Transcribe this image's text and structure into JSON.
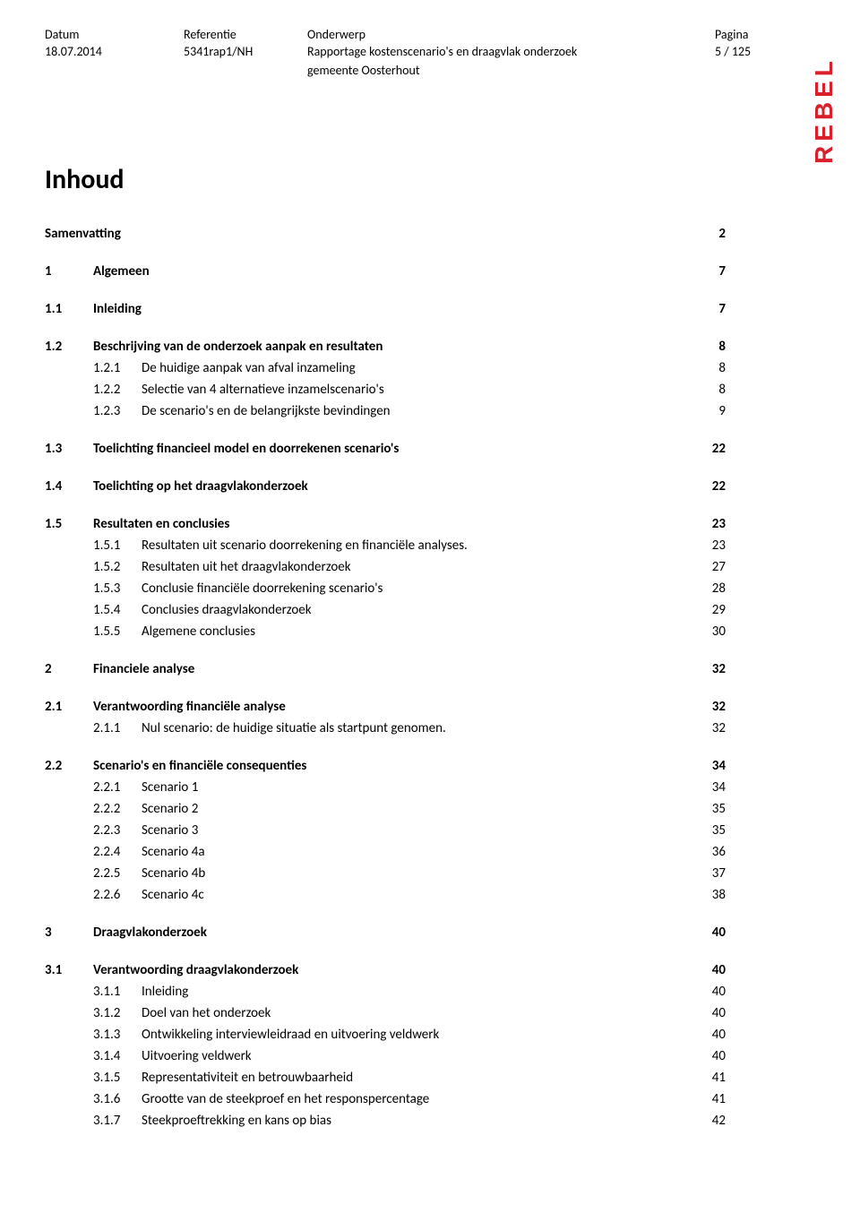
{
  "header": {
    "labels": {
      "datum": "Datum",
      "referentie": "Referentie",
      "onderwerp": "Onderwerp",
      "pagina": "Pagina"
    },
    "values": {
      "datum": "18.07.2014",
      "referentie": "5341rap1/NH",
      "onderwerp_line1": "Rapportage kostenscenario's en draagvlak onderzoek",
      "onderwerp_line2": "gemeente Oosterhout",
      "pagina": "5 / 125"
    }
  },
  "logo": {
    "text": "REBEL",
    "color": "#d91f2a"
  },
  "title": "Inhoud",
  "toc": [
    {
      "level": 0,
      "num": "",
      "title": "Samenvatting",
      "page": "2",
      "bold": true,
      "gap": true
    },
    {
      "level": 0,
      "num": "1",
      "title": "Algemeen",
      "page": "7",
      "bold": true,
      "gap": true
    },
    {
      "level": 0,
      "num": "1.1",
      "title": "Inleiding",
      "page": "7",
      "bold": true,
      "gap": true
    },
    {
      "level": 0,
      "num": "1.2",
      "title": "Beschrijving van de onderzoek aanpak en resultaten",
      "page": "8",
      "bold": true
    },
    {
      "level": 1,
      "num": "1.2.1",
      "title": "De huidige aanpak van afval inzameling",
      "page": "8"
    },
    {
      "level": 1,
      "num": "1.2.2",
      "title": "Selectie van 4 alternatieve inzamelscenario's",
      "page": "8"
    },
    {
      "level": 1,
      "num": "1.2.3",
      "title": "De scenario's en de belangrijkste bevindingen",
      "page": "9",
      "gap": true
    },
    {
      "level": 0,
      "num": "1.3",
      "title": "Toelichting financieel model en doorrekenen scenario's",
      "page": "22",
      "bold": true,
      "gap": true
    },
    {
      "level": 0,
      "num": "1.4",
      "title": "Toelichting op het draagvlakonderzoek",
      "page": "22",
      "bold": true,
      "gap": true
    },
    {
      "level": 0,
      "num": "1.5",
      "title": "Resultaten en conclusies",
      "page": "23",
      "bold": true
    },
    {
      "level": 1,
      "num": "1.5.1",
      "title": "Resultaten uit scenario doorrekening en financiële analyses.",
      "page": "23"
    },
    {
      "level": 1,
      "num": "1.5.2",
      "title": "Resultaten uit het draagvlakonderzoek",
      "page": "27"
    },
    {
      "level": 1,
      "num": "1.5.3",
      "title": "Conclusie financiële doorrekening scenario's",
      "page": "28"
    },
    {
      "level": 1,
      "num": "1.5.4",
      "title": "Conclusies draagvlakonderzoek",
      "page": "29"
    },
    {
      "level": 1,
      "num": "1.5.5",
      "title": "Algemene conclusies",
      "page": "30",
      "gap": true
    },
    {
      "level": 0,
      "num": "2",
      "title": "Financiele analyse",
      "page": "32",
      "bold": true,
      "gap": true
    },
    {
      "level": 0,
      "num": "2.1",
      "title": "Verantwoording financiële analyse",
      "page": "32",
      "bold": true
    },
    {
      "level": 1,
      "num": "2.1.1",
      "title": "Nul scenario: de huidige situatie als startpunt genomen.",
      "page": "32",
      "gap": true
    },
    {
      "level": 0,
      "num": "2.2",
      "title": "Scenario's en financiële consequenties",
      "page": "34",
      "bold": true
    },
    {
      "level": 1,
      "num": "2.2.1",
      "title": "Scenario 1",
      "page": "34"
    },
    {
      "level": 1,
      "num": "2.2.2",
      "title": "Scenario 2",
      "page": "35"
    },
    {
      "level": 1,
      "num": "2.2.3",
      "title": "Scenario 3",
      "page": "35"
    },
    {
      "level": 1,
      "num": "2.2.4",
      "title": "Scenario 4a",
      "page": "36"
    },
    {
      "level": 1,
      "num": "2.2.5",
      "title": "Scenario 4b",
      "page": "37"
    },
    {
      "level": 1,
      "num": "2.2.6",
      "title": "Scenario 4c",
      "page": "38",
      "gap": true
    },
    {
      "level": 0,
      "num": "3",
      "title": "Draagvlakonderzoek",
      "page": "40",
      "bold": true,
      "gap": true
    },
    {
      "level": 0,
      "num": "3.1",
      "title": "Verantwoording draagvlakonderzoek",
      "page": "40",
      "bold": true
    },
    {
      "level": 1,
      "num": "3.1.1",
      "title": "Inleiding",
      "page": "40"
    },
    {
      "level": 1,
      "num": "3.1.2",
      "title": "Doel van het onderzoek",
      "page": "40"
    },
    {
      "level": 1,
      "num": "3.1.3",
      "title": "Ontwikkeling interviewleidraad en uitvoering veldwerk",
      "page": "40"
    },
    {
      "level": 1,
      "num": "3.1.4",
      "title": "Uitvoering veldwerk",
      "page": "40"
    },
    {
      "level": 1,
      "num": "3.1.5",
      "title": "Representativiteit en betrouwbaarheid",
      "page": "41"
    },
    {
      "level": 1,
      "num": "3.1.6",
      "title": "Grootte van de steekproef en het responspercentage",
      "page": "41"
    },
    {
      "level": 1,
      "num": "3.1.7",
      "title": "Steekproeftrekking en kans op bias",
      "page": "42"
    }
  ]
}
